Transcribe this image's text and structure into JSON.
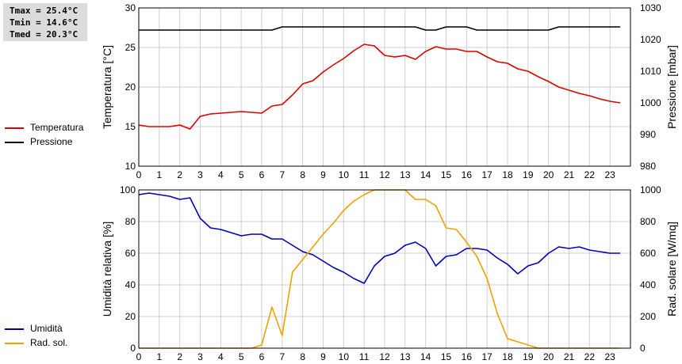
{
  "stats": [
    "Tmax = 25.4°C",
    "Tmin = 14.6°C",
    "Tmed = 20.3°C"
  ],
  "legend_top": [
    {
      "label": "Temperatura",
      "color": "#dd0000"
    },
    {
      "label": "Pressione",
      "color": "#000000"
    }
  ],
  "legend_bottom": [
    {
      "label": "Umidità",
      "color": "#0000bb"
    },
    {
      "label": "Rad. sol.",
      "color": "#f0a000"
    }
  ],
  "chart_data": [
    {
      "type": "line",
      "xlabel": "",
      "ylabel_left": "Temperatura [°C]",
      "ylabel_right": "Pressione [mbar]",
      "xlim": [
        0,
        24
      ],
      "ylim_left": [
        10,
        30
      ],
      "ylim_right": [
        980,
        1030
      ],
      "xticks": [
        0,
        1,
        2,
        3,
        4,
        5,
        6,
        7,
        8,
        9,
        10,
        11,
        12,
        13,
        14,
        15,
        16,
        17,
        18,
        19,
        20,
        21,
        22,
        23
      ],
      "yticks_left": [
        10,
        15,
        20,
        25,
        30
      ],
      "yticks_right": [
        980,
        990,
        1000,
        1010,
        1020,
        1030
      ],
      "grid": true,
      "series": [
        {
          "name": "Temperatura",
          "axis": "left",
          "color": "#dd0000",
          "x": [
            0,
            0.5,
            1,
            1.5,
            2,
            2.5,
            3,
            3.5,
            4,
            4.5,
            5,
            5.5,
            6,
            6.5,
            7,
            7.5,
            8,
            8.5,
            9,
            9.5,
            10,
            10.5,
            11,
            11.5,
            12,
            12.5,
            13,
            13.5,
            14,
            14.5,
            15,
            15.5,
            16,
            16.5,
            17,
            17.5,
            18,
            18.5,
            19,
            19.5,
            20,
            20.5,
            21,
            21.5,
            22,
            22.5,
            23,
            23.5
          ],
          "y": [
            15.2,
            15.0,
            15.0,
            15.0,
            15.2,
            14.7,
            16.3,
            16.6,
            16.7,
            16.8,
            16.9,
            16.8,
            16.7,
            17.6,
            17.8,
            19.0,
            20.4,
            20.8,
            21.9,
            22.8,
            23.6,
            24.6,
            25.4,
            25.2,
            24.0,
            23.8,
            24.0,
            23.5,
            24.5,
            25.1,
            24.8,
            24.8,
            24.5,
            24.5,
            23.8,
            23.2,
            23.0,
            22.3,
            22.0,
            21.3,
            20.7,
            20.0,
            19.6,
            19.2,
            18.9,
            18.5,
            18.2,
            18.0
          ]
        },
        {
          "name": "Pressione",
          "axis": "right",
          "color": "#000000",
          "x": [
            0,
            6.5,
            7,
            13.5,
            14,
            14.5,
            15,
            16,
            16.5,
            20,
            20.5,
            23.5
          ],
          "y": [
            1023,
            1023,
            1024,
            1024,
            1023,
            1023,
            1024,
            1024,
            1023,
            1023,
            1024,
            1024
          ]
        }
      ]
    },
    {
      "type": "line",
      "xlabel": "",
      "ylabel_left": "Umidità relativa [%]",
      "ylabel_right": "Rad. solare [W/mq]",
      "xlim": [
        0,
        24
      ],
      "ylim_left": [
        0,
        100
      ],
      "ylim_right": [
        0,
        1000
      ],
      "xticks": [
        0,
        1,
        2,
        3,
        4,
        5,
        6,
        7,
        8,
        9,
        10,
        11,
        12,
        13,
        14,
        15,
        16,
        17,
        18,
        19,
        20,
        21,
        22,
        23
      ],
      "yticks_left": [
        0,
        20,
        40,
        60,
        80,
        100
      ],
      "yticks_right": [
        0,
        200,
        400,
        600,
        800,
        1000
      ],
      "grid": true,
      "series": [
        {
          "name": "Umidità",
          "axis": "left",
          "color": "#0000bb",
          "x": [
            0,
            0.5,
            1,
            1.5,
            2,
            2.5,
            3,
            3.5,
            4,
            4.5,
            5,
            5.5,
            6,
            6.5,
            7,
            7.5,
            8,
            8.5,
            9,
            9.5,
            10,
            10.5,
            11,
            11.5,
            12,
            12.5,
            13,
            13.5,
            14,
            14.5,
            15,
            15.5,
            16,
            16.5,
            17,
            17.5,
            18,
            18.5,
            19,
            19.5,
            20,
            20.5,
            21,
            21.5,
            22,
            22.5,
            23,
            23.5
          ],
          "y": [
            97,
            98,
            97,
            96,
            94,
            95,
            82,
            76,
            75,
            73,
            71,
            72,
            72,
            69,
            69,
            65,
            61,
            59,
            55,
            51,
            48,
            44,
            41,
            52,
            58,
            60,
            65,
            67,
            63,
            52,
            58,
            59,
            63,
            63,
            62,
            57,
            53,
            47,
            52,
            54,
            60,
            64,
            63,
            64,
            62,
            61,
            60,
            60
          ]
        },
        {
          "name": "Rad. sol.",
          "axis": "right",
          "color": "#f0a000",
          "x": [
            0,
            5.5,
            6,
            6.5,
            7,
            7.5,
            8,
            8.5,
            9,
            9.5,
            10,
            10.5,
            11,
            11.5,
            12,
            12.5,
            13,
            13.5,
            14,
            14.5,
            15,
            15.5,
            16,
            16.5,
            17,
            17.5,
            18,
            18.5,
            19,
            19.5,
            20,
            23.5
          ],
          "y": [
            0,
            0,
            20,
            260,
            80,
            480,
            560,
            640,
            720,
            790,
            870,
            930,
            970,
            1000,
            1000,
            1000,
            1000,
            940,
            940,
            900,
            760,
            750,
            670,
            580,
            440,
            220,
            60,
            40,
            20,
            0,
            0,
            0
          ]
        }
      ]
    }
  ]
}
